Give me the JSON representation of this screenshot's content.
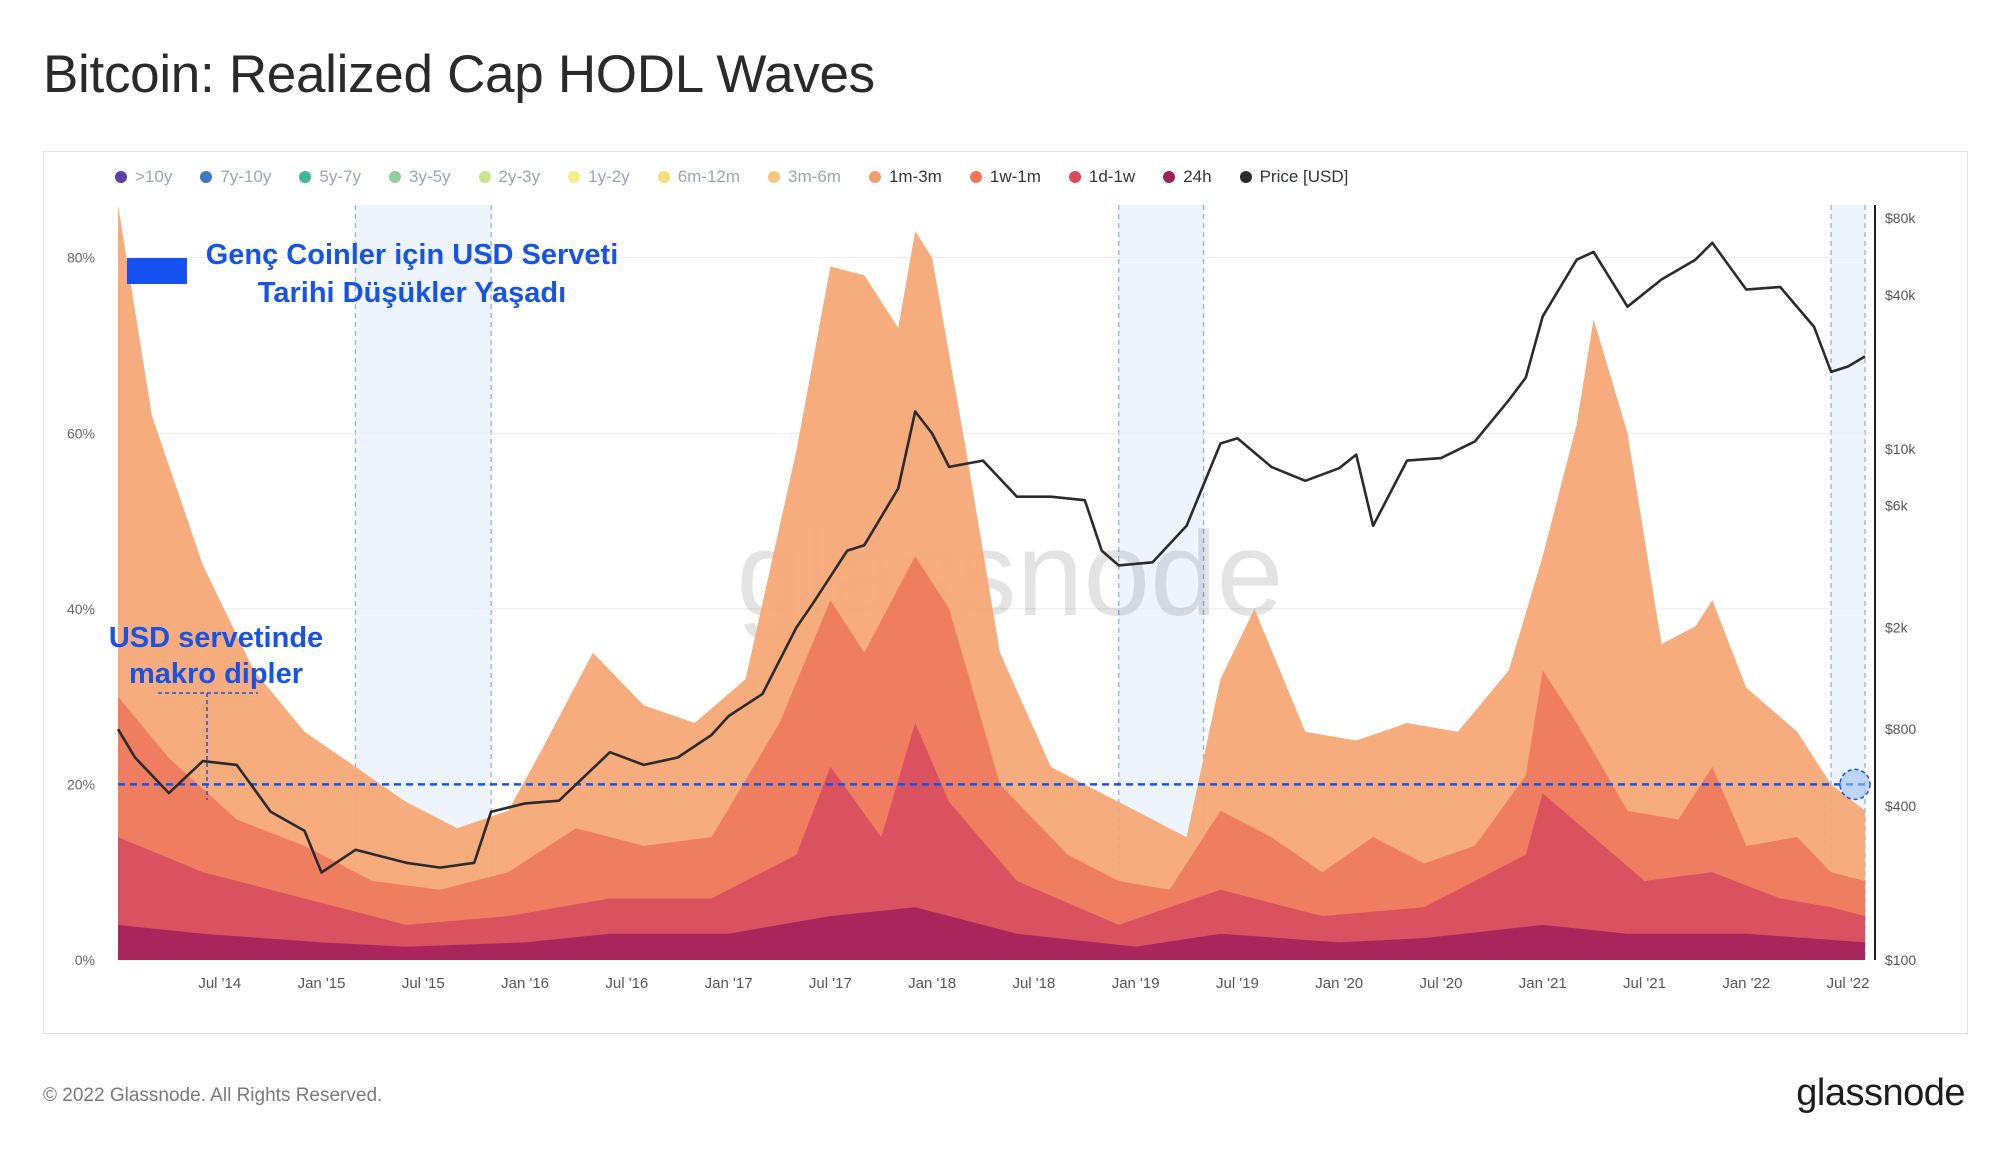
{
  "title": "Bitcoin: Realized Cap HODL Waves",
  "legend": [
    {
      "label": ">10y",
      "color": "#5b3fa6",
      "active": false
    },
    {
      "label": "7y-10y",
      "color": "#3a7bbf",
      "active": false
    },
    {
      "label": "5y-7y",
      "color": "#3fb59c",
      "active": false
    },
    {
      "label": "3y-5y",
      "color": "#8fd19b",
      "active": false
    },
    {
      "label": "2y-3y",
      "color": "#c8e68a",
      "active": false
    },
    {
      "label": "1y-2y",
      "color": "#f3f08a",
      "active": false
    },
    {
      "label": "6m-12m",
      "color": "#f7dc7a",
      "active": false
    },
    {
      "label": "3m-6m",
      "color": "#f7c77a",
      "active": false
    },
    {
      "label": "1m-3m",
      "color": "#f59e6b",
      "active": true
    },
    {
      "label": "1w-1m",
      "color": "#ef7656",
      "active": true
    },
    {
      "label": "1d-1w",
      "color": "#d94a5c",
      "active": true
    },
    {
      "label": "24h",
      "color": "#9e1f5a",
      "active": true
    },
    {
      "label": "Price [USD]",
      "color": "#2b2b2b",
      "active": true
    }
  ],
  "annotations": {
    "top_line1": "Genç Coinler için USD Serveti",
    "top_line2": "Tarihi Düşükler Yaşadı",
    "left_line1": "USD servetinde",
    "left_line2": "makro dipler"
  },
  "watermark": "glassnode",
  "footer": {
    "copyright": "© 2022 Glassnode. All Rights Reserved.",
    "logo": "glassnode"
  },
  "chart_data": {
    "type": "area",
    "title": "Bitcoin: Realized Cap HODL Waves",
    "x_ticks": [
      "Jul '14",
      "Jan '15",
      "Jul '15",
      "Jan '16",
      "Jul '16",
      "Jan '17",
      "Jul '17",
      "Jan '18",
      "Jul '18",
      "Jan '19",
      "Jul '19",
      "Jan '20",
      "Jul '20",
      "Jan '21",
      "Jul '21",
      "Jan '22",
      "Jul '22"
    ],
    "x_range": [
      "2014-01",
      "2022-08"
    ],
    "y_left_ticks": [
      "0%",
      "20%",
      "40%",
      "60%",
      "80%"
    ],
    "y_left_range": [
      0,
      86
    ],
    "y_right_ticks": [
      "$100",
      "$400",
      "$800",
      "$2k",
      "$6k",
      "$10k",
      "$40k",
      "$80k"
    ],
    "y_right_scale": "log",
    "y_right_range": [
      100,
      90000
    ],
    "grid": true,
    "legend_position": "top-left",
    "threshold_line": 20,
    "highlight_periods": [
      [
        "2015-03",
        "2015-11"
      ],
      [
        "2018-12",
        "2019-05"
      ],
      [
        "2022-06",
        "2022-08"
      ]
    ],
    "series": [
      {
        "name": "1m-3m",
        "color": "#f7a877",
        "x": [
          "2014-01",
          "2014-03",
          "2014-06",
          "2014-09",
          "2014-12",
          "2015-03",
          "2015-06",
          "2015-09",
          "2015-12",
          "2016-02",
          "2016-05",
          "2016-08",
          "2016-11",
          "2017-02",
          "2017-05",
          "2017-07",
          "2017-09",
          "2017-11",
          "2017-12",
          "2018-01",
          "2018-03",
          "2018-05",
          "2018-08",
          "2018-11",
          "2019-02",
          "2019-04",
          "2019-06",
          "2019-08",
          "2019-11",
          "2020-02",
          "2020-05",
          "2020-08",
          "2020-11",
          "2021-01",
          "2021-03",
          "2021-04",
          "2021-06",
          "2021-08",
          "2021-10",
          "2021-11",
          "2022-01",
          "2022-04",
          "2022-06",
          "2022-08"
        ],
        "values": [
          86,
          62,
          45,
          33,
          26,
          22,
          18,
          15,
          17,
          24,
          35,
          29,
          27,
          32,
          58,
          79,
          78,
          72,
          83,
          80,
          58,
          35,
          22,
          19,
          16,
          14,
          32,
          40,
          26,
          25,
          27,
          26,
          33,
          46,
          61,
          73,
          60,
          36,
          38,
          41,
          31,
          26,
          20,
          17
        ]
      },
      {
        "name": "1w-1m",
        "color": "#ee7a5e",
        "x": [
          "2014-01",
          "2014-04",
          "2014-08",
          "2014-12",
          "2015-04",
          "2015-08",
          "2015-12",
          "2016-04",
          "2016-08",
          "2016-12",
          "2017-04",
          "2017-07",
          "2017-09",
          "2017-12",
          "2018-02",
          "2018-05",
          "2018-09",
          "2018-12",
          "2019-03",
          "2019-06",
          "2019-09",
          "2019-12",
          "2020-03",
          "2020-06",
          "2020-09",
          "2020-12",
          "2021-01",
          "2021-03",
          "2021-06",
          "2021-09",
          "2021-11",
          "2022-01",
          "2022-04",
          "2022-06",
          "2022-08"
        ],
        "values": [
          30,
          23,
          16,
          13,
          9,
          8,
          10,
          15,
          13,
          14,
          27,
          41,
          35,
          46,
          40,
          20,
          12,
          9,
          8,
          17,
          14,
          10,
          14,
          11,
          13,
          21,
          33,
          27,
          17,
          16,
          22,
          13,
          14,
          10,
          9
        ]
      },
      {
        "name": "1d-1w",
        "color": "#d8505f",
        "x": [
          "2014-01",
          "2014-06",
          "2014-12",
          "2015-06",
          "2015-12",
          "2016-06",
          "2016-12",
          "2017-05",
          "2017-07",
          "2017-10",
          "2017-12",
          "2018-02",
          "2018-06",
          "2018-12",
          "2019-06",
          "2019-12",
          "2020-06",
          "2020-12",
          "2021-01",
          "2021-04",
          "2021-07",
          "2021-11",
          "2022-03",
          "2022-06",
          "2022-08"
        ],
        "values": [
          14,
          10,
          7,
          4,
          5,
          7,
          7,
          12,
          22,
          14,
          27,
          18,
          9,
          4,
          8,
          5,
          6,
          12,
          19,
          14,
          9,
          10,
          7,
          6,
          5
        ]
      },
      {
        "name": "24h",
        "color": "#a8235b",
        "x": [
          "2014-01",
          "2014-06",
          "2015-01",
          "2015-06",
          "2016-01",
          "2016-06",
          "2017-01",
          "2017-07",
          "2017-12",
          "2018-06",
          "2019-01",
          "2019-06",
          "2020-01",
          "2020-06",
          "2021-01",
          "2021-06",
          "2022-01",
          "2022-08"
        ],
        "values": [
          4,
          3,
          2,
          1.5,
          2,
          3,
          3,
          5,
          6,
          3,
          1.5,
          3,
          2,
          2.5,
          4,
          3,
          3,
          2
        ]
      },
      {
        "name": "Price [USD]",
        "color": "#2b2b2b",
        "axis": "right",
        "x": [
          "2014-01",
          "2014-02",
          "2014-04",
          "2014-06",
          "2014-08",
          "2014-10",
          "2014-12",
          "2015-01",
          "2015-03",
          "2015-06",
          "2015-08",
          "2015-10",
          "2015-11",
          "2016-01",
          "2016-03",
          "2016-06",
          "2016-08",
          "2016-10",
          "2016-12",
          "2017-01",
          "2017-03",
          "2017-05",
          "2017-06",
          "2017-08",
          "2017-09",
          "2017-11",
          "2017-12",
          "2018-01",
          "2018-02",
          "2018-04",
          "2018-06",
          "2018-08",
          "2018-10",
          "2018-11",
          "2018-12",
          "2019-02",
          "2019-04",
          "2019-06",
          "2019-07",
          "2019-09",
          "2019-11",
          "2020-01",
          "2020-02",
          "2020-03",
          "2020-05",
          "2020-07",
          "2020-09",
          "2020-11",
          "2020-12",
          "2021-01",
          "2021-03",
          "2021-04",
          "2021-06",
          "2021-08",
          "2021-10",
          "2021-11",
          "2022-01",
          "2022-03",
          "2022-05",
          "2022-06",
          "2022-07",
          "2022-08"
        ],
        "values": [
          800,
          620,
          450,
          600,
          580,
          380,
          320,
          220,
          270,
          240,
          230,
          240,
          380,
          410,
          420,
          650,
          580,
          620,
          760,
          900,
          1100,
          2000,
          2500,
          4000,
          4200,
          7000,
          14000,
          11500,
          8500,
          9000,
          6500,
          6500,
          6300,
          4000,
          3500,
          3600,
          5000,
          10500,
          11000,
          8500,
          7500,
          8400,
          9500,
          5000,
          9000,
          9200,
          10700,
          15500,
          19000,
          33000,
          55000,
          59000,
          36000,
          46000,
          55000,
          64000,
          42000,
          43000,
          30000,
          20000,
          21000,
          23000
        ]
      }
    ]
  }
}
